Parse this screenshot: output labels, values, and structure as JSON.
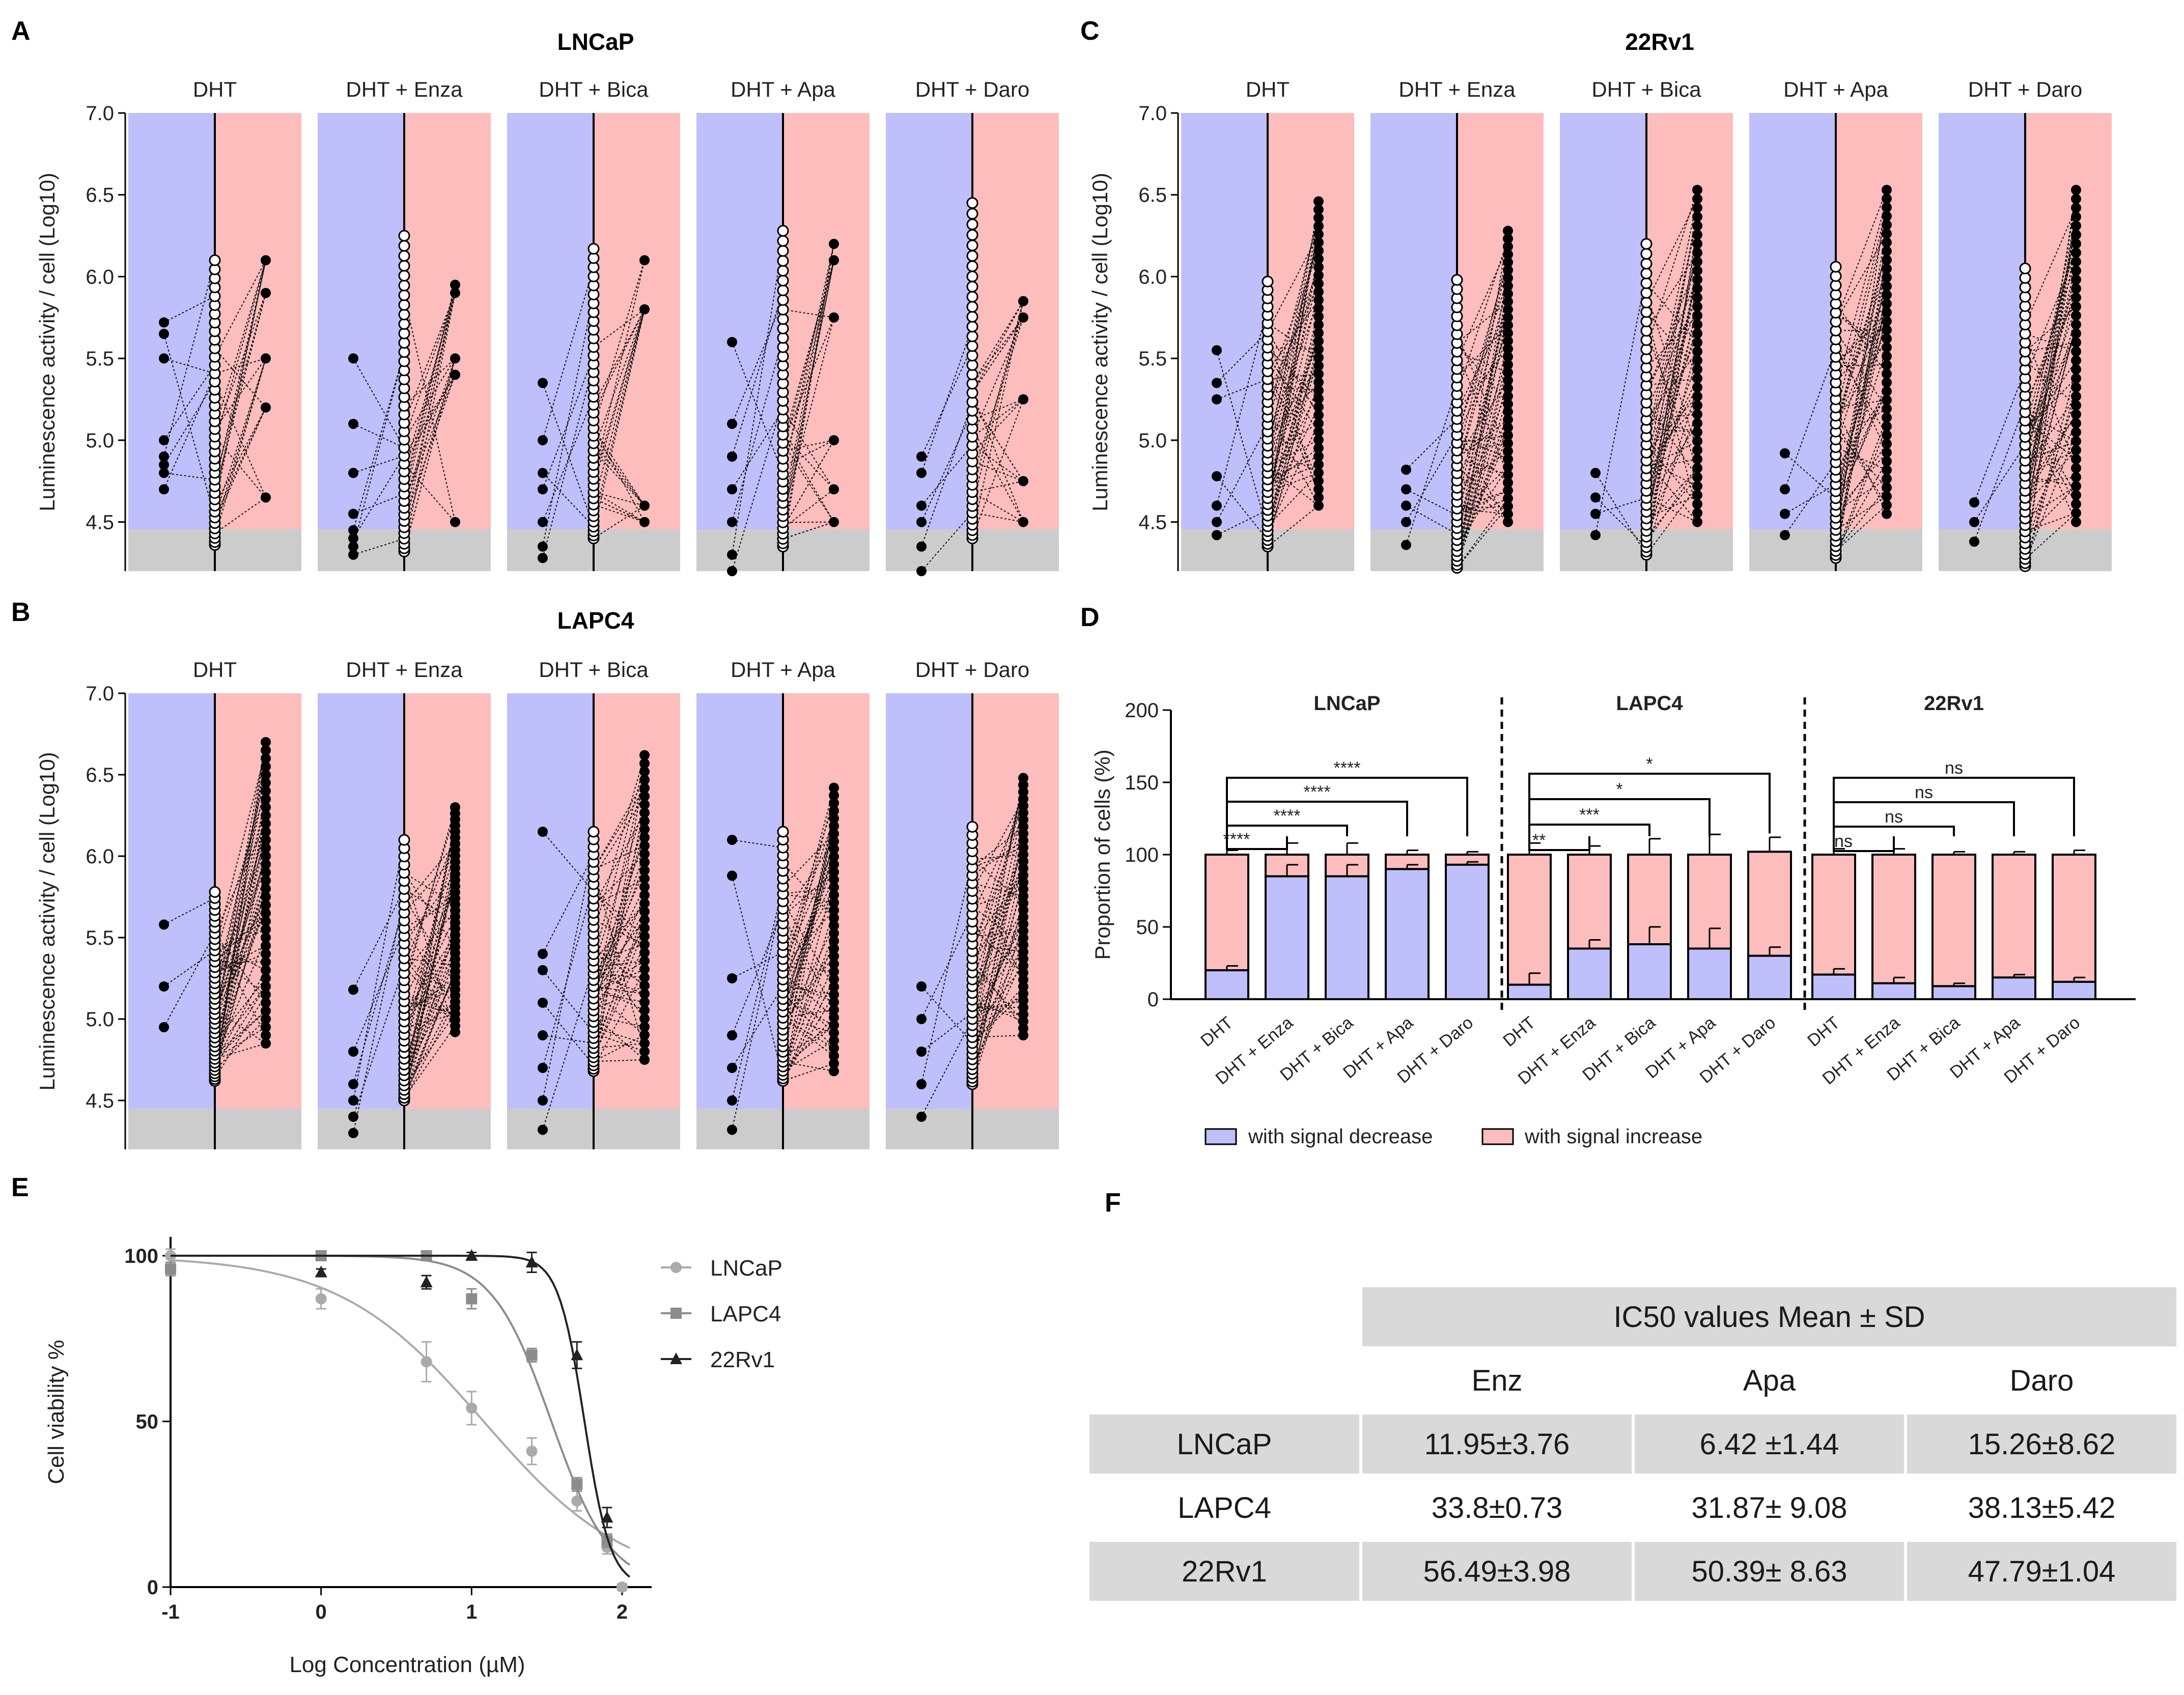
{
  "colors": {
    "decrease": "#bfbffc",
    "increase": "#fdbdbd",
    "floor": "#cccccc",
    "lncap_line": "#aaaaaa",
    "lapc4_line": "#8c8c8c",
    "rv1_line": "#222222"
  },
  "panel_letters": [
    "A",
    "B",
    "C",
    "D",
    "E",
    "F"
  ],
  "conditions": [
    "DHT",
    "DHT + Enza",
    "DHT + Bica",
    "DHT + Apa",
    "DHT + Daro"
  ],
  "panels": {
    "A": {
      "title": "LNCaP"
    },
    "B": {
      "title": "LAPC4"
    },
    "C": {
      "title": "22Rv1"
    }
  },
  "y_axis_label": "Luminescence activity / cell (Log10)",
  "y_ticks": [
    "7.0",
    "6.5",
    "6.0",
    "5.5",
    "5.0",
    "4.5"
  ],
  "chart_data": [
    {
      "panel": "A",
      "type": "scatter",
      "title": "LNCaP",
      "categories": [
        "DHT",
        "DHT + Enza",
        "DHT + Bica",
        "DHT + Apa",
        "DHT + Daro"
      ],
      "ylabel": "Luminescence activity / cell (Log10)",
      "ylim": [
        4.2,
        7.0
      ],
      "groups": [
        {
          "left": [
            4.7,
            4.8,
            4.85,
            4.9,
            5.0,
            5.5,
            5.65,
            5.72
          ],
          "center_range": [
            4.36,
            6.1
          ],
          "right": [
            4.65,
            5.2,
            5.5,
            5.9,
            6.1
          ]
        },
        {
          "left": [
            4.3,
            4.35,
            4.4,
            4.45,
            4.55,
            4.8,
            5.1,
            5.5
          ],
          "center_range": [
            4.32,
            6.25
          ],
          "right": [
            4.5,
            5.4,
            5.5,
            5.9,
            5.95
          ]
        },
        {
          "left": [
            4.28,
            4.35,
            4.5,
            4.7,
            4.8,
            5.0,
            5.35
          ],
          "center_range": [
            4.4,
            6.17
          ],
          "right": [
            4.5,
            4.6,
            5.8,
            6.1
          ]
        },
        {
          "left": [
            4.2,
            4.3,
            4.5,
            4.7,
            4.9,
            5.1,
            5.6
          ],
          "center_range": [
            4.35,
            6.28
          ],
          "right": [
            4.5,
            4.7,
            5.0,
            5.75,
            6.1,
            6.2
          ]
        },
        {
          "left": [
            4.2,
            4.35,
            4.5,
            4.6,
            4.8,
            4.9
          ],
          "center_range": [
            4.4,
            6.45
          ],
          "right": [
            4.5,
            4.75,
            5.25,
            5.75,
            5.85
          ]
        }
      ]
    },
    {
      "panel": "B",
      "type": "scatter",
      "title": "LAPC4",
      "categories": [
        "DHT",
        "DHT + Enza",
        "DHT + Bica",
        "DHT + Apa",
        "DHT + Daro"
      ],
      "ylabel": "Luminescence activity / cell (Log10)",
      "ylim": [
        4.2,
        7.0
      ],
      "groups": [
        {
          "left": [
            4.95,
            5.2,
            5.58
          ],
          "center_range": [
            4.62,
            5.78
          ],
          "right_range": [
            4.85,
            6.7
          ]
        },
        {
          "left": [
            4.3,
            4.4,
            4.5,
            4.6,
            4.8,
            5.18
          ],
          "center_range": [
            4.5,
            6.1
          ],
          "right_range": [
            4.92,
            6.3
          ]
        },
        {
          "left": [
            4.32,
            4.5,
            4.7,
            4.9,
            5.1,
            5.3,
            5.4,
            6.15
          ],
          "center_range": [
            4.68,
            6.15
          ],
          "right_range": [
            4.75,
            6.62
          ]
        },
        {
          "left": [
            4.32,
            4.5,
            4.7,
            4.9,
            5.25,
            5.88,
            6.1
          ],
          "center_range": [
            4.62,
            6.15
          ],
          "right_range": [
            4.68,
            6.42
          ]
        },
        {
          "left": [
            4.4,
            4.6,
            4.8,
            5.0,
            5.2
          ],
          "center_range": [
            4.6,
            6.18
          ],
          "right_range": [
            4.9,
            6.48
          ]
        }
      ]
    },
    {
      "panel": "C",
      "type": "scatter",
      "title": "22Rv1",
      "categories": [
        "DHT",
        "DHT + Enza",
        "DHT + Bica",
        "DHT + Apa",
        "DHT + Daro"
      ],
      "ylabel": "Luminescence activity / cell (Log10)",
      "ylim": [
        4.2,
        7.0
      ],
      "groups": [
        {
          "left": [
            4.42,
            4.5,
            4.6,
            4.78,
            5.25,
            5.35,
            5.55
          ],
          "center_range": [
            4.35,
            5.97
          ],
          "right_range": [
            4.6,
            6.46
          ]
        },
        {
          "left": [
            4.36,
            4.5,
            4.6,
            4.7,
            4.82
          ],
          "center_range": [
            4.22,
            5.98
          ],
          "right_range": [
            4.5,
            6.28
          ]
        },
        {
          "left": [
            4.42,
            4.55,
            4.65,
            4.8
          ],
          "center_range": [
            4.3,
            6.2
          ],
          "right_range": [
            4.5,
            6.53
          ]
        },
        {
          "left": [
            4.42,
            4.55,
            4.7,
            4.92
          ],
          "center_range": [
            4.28,
            6.06
          ],
          "right_range": [
            4.55,
            6.53
          ]
        },
        {
          "left": [
            4.38,
            4.5,
            4.62
          ],
          "center_range": [
            4.23,
            6.05
          ],
          "right_range": [
            4.5,
            6.53
          ]
        }
      ]
    },
    {
      "panel": "D",
      "type": "bar",
      "ylabel": "Proportion of cells (%)",
      "ylim": [
        0,
        200
      ],
      "y_ticks": [
        "0",
        "50",
        "100",
        "150",
        "200"
      ],
      "legend": [
        "with signal decrease",
        "with signal increase"
      ],
      "groups": [
        {
          "name": "LNCaP",
          "categories": [
            "DHT",
            "DHT + Enza",
            "DHT + Bica",
            "DHT + Apa",
            "DHT + Daro"
          ],
          "decrease": [
            20,
            85,
            85,
            90,
            93
          ],
          "err_dec": [
            3,
            8,
            8,
            3,
            2
          ],
          "total": [
            100,
            100,
            100,
            100,
            100
          ],
          "err_tot": [
            3,
            8,
            8,
            3,
            2
          ],
          "significance": [
            "****",
            "****",
            "****",
            "****"
          ]
        },
        {
          "name": "LAPC4",
          "categories": [
            "DHT",
            "DHT + Enza",
            "DHT + Bica",
            "DHT + Apa",
            "DHT + Daro"
          ],
          "decrease": [
            10,
            35,
            38,
            35,
            30
          ],
          "err_dec": [
            8,
            6,
            12,
            14,
            6
          ],
          "total": [
            100,
            100,
            100,
            100,
            102
          ],
          "err_tot": [
            8,
            6,
            11,
            14,
            10
          ],
          "significance": [
            "**",
            "***",
            "*",
            "*"
          ]
        },
        {
          "name": "22Rv1",
          "categories": [
            "DHT",
            "DHT + Enza",
            "DHT + Bica",
            "DHT + Apa",
            "DHT + Daro"
          ],
          "decrease": [
            17,
            11,
            9,
            15,
            12
          ],
          "err_dec": [
            4,
            4,
            2,
            2,
            3
          ],
          "total": [
            100,
            100,
            100,
            100,
            100
          ],
          "err_tot": [
            4,
            4,
            2,
            2,
            3
          ],
          "significance": [
            "ns",
            "ns",
            "ns",
            "ns"
          ]
        }
      ]
    },
    {
      "panel": "E",
      "type": "line",
      "xlabel": "Log Concentration (µM)",
      "ylabel": "Cell viability %",
      "xlim": [
        -1,
        2
      ],
      "ylim": [
        0,
        100
      ],
      "x_ticks": [
        "-1",
        "0",
        "1",
        "2"
      ],
      "y_ticks": [
        "0",
        "50",
        "100"
      ],
      "series": [
        {
          "name": "LNCaP",
          "marker": "circle",
          "x": [
            -1,
            0,
            0.7,
            1,
            1.4,
            1.7,
            1.9,
            2
          ],
          "y": [
            100,
            87,
            68,
            54,
            41,
            26,
            12,
            0
          ],
          "err": [
            2,
            3,
            6,
            5,
            4,
            3,
            2,
            1
          ],
          "ic50_log": 1.08,
          "hill": 0.9
        },
        {
          "name": "LAPC4",
          "marker": "square",
          "x": [
            -1,
            0,
            0.7,
            1,
            1.4,
            1.7,
            1.9
          ],
          "y": [
            96,
            100,
            100,
            87,
            70,
            31,
            14
          ],
          "err": [
            2,
            1,
            1,
            3,
            2,
            2,
            2
          ],
          "ic50_log": 1.53,
          "hill": 2.2
        },
        {
          "name": "22Rv1",
          "marker": "triangle",
          "x": [
            0,
            0.7,
            1,
            1.4,
            1.7,
            1.9
          ],
          "y": [
            95,
            92,
            100,
            98,
            70,
            21
          ],
          "err": [
            1,
            2,
            1,
            3,
            4,
            3
          ],
          "ic50_log": 1.75,
          "hill": 5
        }
      ]
    },
    {
      "panel": "F",
      "type": "table",
      "header_title": "IC50 values Mean ± SD",
      "columns": [
        "Enz",
        "Apa",
        "Daro"
      ],
      "rows": [
        {
          "cell_line": "LNCaP",
          "values": [
            "11.95±3.76",
            "6.42 ±1.44",
            "15.26±8.62"
          ]
        },
        {
          "cell_line": "LAPC4",
          "values": [
            "33.8±0.73",
            "31.87± 9.08",
            "38.13±5.42"
          ]
        },
        {
          "cell_line": "22Rv1",
          "values": [
            "56.49±3.98",
            "50.39± 8.63",
            "47.79±1.04"
          ]
        }
      ]
    }
  ]
}
